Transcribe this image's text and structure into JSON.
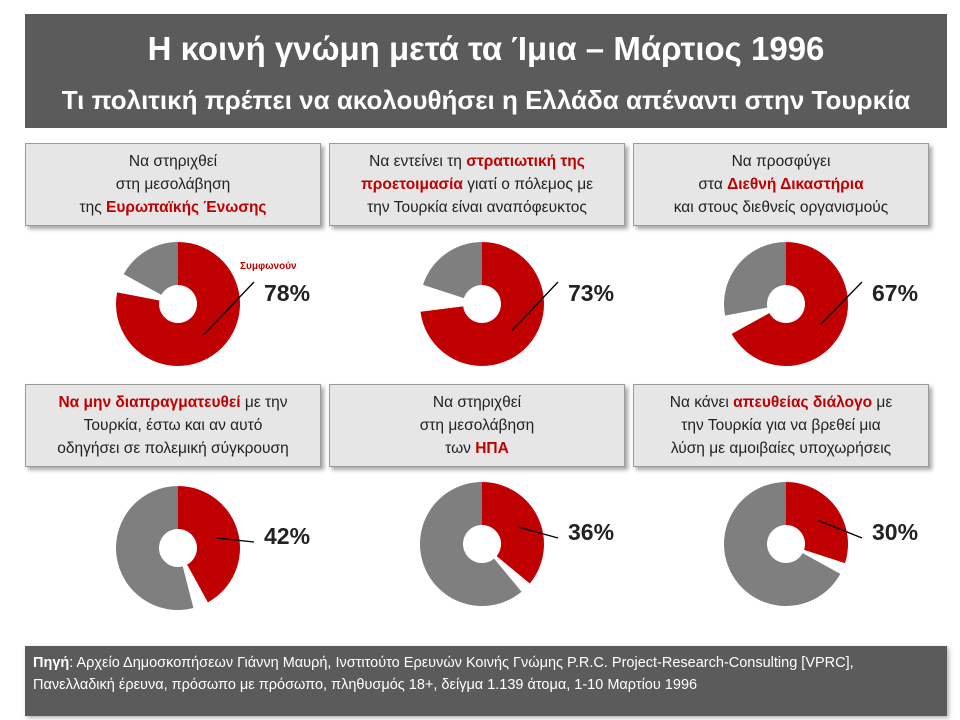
{
  "header": {
    "title": "Η κοινή γνώμη μετά τα Ίμια – Μάρτιος 1996",
    "subtitle": "Τι πολιτική πρέπει να ακολουθήσει η Ελλάδα απέναντι στην Τουρκία"
  },
  "questions": [
    {
      "lines": [
        [
          {
            "t": "Να στηριχθεί"
          }
        ],
        [
          {
            "t": "στη μεσολάβηση"
          }
        ],
        [
          {
            "t": "της "
          },
          {
            "t": "Ευρωπαϊκής Ένωσης",
            "hl": true
          }
        ]
      ]
    },
    {
      "lines": [
        [
          {
            "t": "Να εντείνει τη "
          },
          {
            "t": "στρατιωτική της",
            "hl": true
          }
        ],
        [
          {
            "t": "προετοιμασία",
            "hl": true
          },
          {
            "t": " γιατί ο πόλεμος με"
          }
        ],
        [
          {
            "t": "την Τουρκία είναι αναπόφευκτος"
          }
        ]
      ]
    },
    {
      "lines": [
        [
          {
            "t": "Να προσφύγει"
          }
        ],
        [
          {
            "t": "στα "
          },
          {
            "t": "Διεθνή Δικαστήρια",
            "hl": true
          }
        ],
        [
          {
            "t": "και στους διεθνείς οργανισμούς"
          }
        ]
      ]
    },
    {
      "lines": [
        [
          {
            "t": "Να μην διαπραγματευθεί",
            "hl": true
          },
          {
            "t": " με την"
          }
        ],
        [
          {
            "t": "Τουρκία, έστω και αν αυτό"
          }
        ],
        [
          {
            "t": "οδηγήσει σε πολεμική σύγκρουση"
          }
        ]
      ]
    },
    {
      "lines": [
        [
          {
            "t": "Να στηριχθεί"
          }
        ],
        [
          {
            "t": "στη μεσολάβηση"
          }
        ],
        [
          {
            "t": "των "
          },
          {
            "t": "ΗΠΑ",
            "hl": true
          }
        ]
      ]
    },
    {
      "lines": [
        [
          {
            "t": "Να κάνει "
          },
          {
            "t": "απευθείας διάλογο",
            "hl": true
          },
          {
            "t": " με"
          }
        ],
        [
          {
            "t": "την Τουρκία για να βρεθεί μια"
          }
        ],
        [
          {
            "t": "λύση με αμοιβαίες υποχωρήσεις"
          }
        ]
      ]
    }
  ],
  "chart_data": [
    {
      "type": "pie",
      "categories": [
        "Συμφωνούν",
        ""
      ],
      "values": [
        78,
        17
      ],
      "data_label": "78%",
      "annotation": "Συμφωνούν"
    },
    {
      "type": "pie",
      "categories": [
        "Συμφωνούν",
        ""
      ],
      "values": [
        73,
        20
      ],
      "data_label": "73%"
    },
    {
      "type": "pie",
      "categories": [
        "Συμφωνούν",
        ""
      ],
      "values": [
        67,
        28
      ],
      "data_label": "67%"
    },
    {
      "type": "pie",
      "categories": [
        "Συμφωνούν",
        ""
      ],
      "values": [
        42,
        54
      ],
      "data_label": "42%"
    },
    {
      "type": "pie",
      "categories": [
        "Συμφωνούν",
        ""
      ],
      "values": [
        36,
        61
      ],
      "data_label": "36%"
    },
    {
      "type": "pie",
      "categories": [
        "Συμφωνούν",
        ""
      ],
      "values": [
        30,
        67
      ],
      "data_label": "30%"
    }
  ],
  "colors": {
    "agree": "#c00000",
    "other": "#7f7f7f",
    "leader": "#000000"
  },
  "footer": {
    "source_label": "Πηγή",
    "source_text": ": Αρχείο Δημοσκοπήσεων Γιάννη Μαυρή, Ινστιτούτο Ερευνών Κοινής Γνώμης P.R.C. Project-Research-Consulting [VPRC], Πανελλαδική έρευνα, πρόσωπο με πρόσωπο, πληθυσμός 18+, δείγμα 1.139 άτομα, 1-10 Μαρτίου 1996"
  }
}
